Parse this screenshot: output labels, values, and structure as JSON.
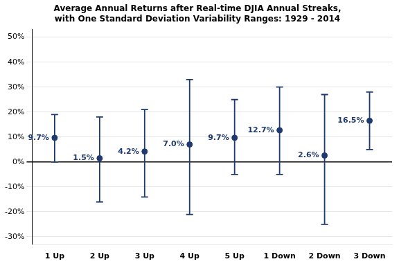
{
  "chart_data": {
    "type": "errorbar",
    "title": "Average Annual Returns after Real-time DJIA Annual Streaks,\nwith One Standard Deviation Variability Ranges: 1929 - 2014",
    "categories": [
      "1 Up",
      "2 Up",
      "3 Up",
      "4 Up",
      "5 Up",
      "1 Down",
      "2 Down",
      "3 Down"
    ],
    "values": [
      9.7,
      1.5,
      4.2,
      7.0,
      9.7,
      12.7,
      2.6,
      16.5
    ],
    "value_labels": [
      "9.7%",
      "1.5%",
      "4.2%",
      "7.0%",
      "9.7%",
      "12.7%",
      "2.6%",
      "16.5%"
    ],
    "upper": [
      19.0,
      18.0,
      21.0,
      33.0,
      25.0,
      30.0,
      27.0,
      28.0
    ],
    "lower": [
      0.0,
      -16.0,
      -14.0,
      -21.0,
      -5.0,
      -5.0,
      -25.0,
      5.0
    ],
    "color": "#1f3a6e",
    "marker": "circle",
    "data_labels": true,
    "ylim": [
      -33,
      53
    ],
    "yticks": [
      {
        "value": -30,
        "label": "-30%"
      },
      {
        "value": -20,
        "label": "-20%"
      },
      {
        "value": -10,
        "label": "-10%"
      },
      {
        "value": 0,
        "label": "0%"
      },
      {
        "value": 10,
        "label": "10%"
      },
      {
        "value": 20,
        "label": "20%"
      },
      {
        "value": 30,
        "label": "30%"
      },
      {
        "value": 40,
        "label": "40%"
      },
      {
        "value": 50,
        "label": "50%"
      }
    ],
    "grid": true
  }
}
